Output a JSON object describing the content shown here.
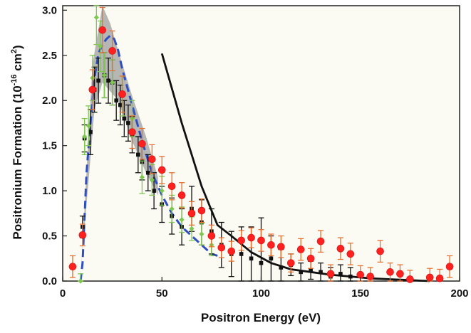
{
  "chart_data": {
    "type": "scatter",
    "title": "",
    "xlabel": "Positron Energy (eV)",
    "ylabel_main": "Positronium Formation (10",
    "ylabel_exp1": "-16",
    "ylabel_mid": " cm",
    "ylabel_exp2": "2",
    "ylabel_end": ")",
    "xlim": [
      0,
      200
    ],
    "ylim": [
      0,
      3.05
    ],
    "xticks": [
      0,
      50,
      100,
      150,
      200
    ],
    "xtick_labels": [
      "0",
      "50",
      "100",
      "150",
      "200"
    ],
    "yticks": [
      0,
      0.5,
      1.0,
      1.5,
      2.0,
      2.5,
      3.0
    ],
    "ytick_labels": [
      "0.0",
      "0.5",
      "1.0",
      "1.5",
      "2.0",
      "2.5",
      "3.0"
    ],
    "colors": {
      "red": "#ff2020",
      "red_err": "#e87030",
      "green": "#7ec850",
      "black": "#111111",
      "blue": "#2f4fbf",
      "band": "#a9a9a9",
      "plot_bg": "#fbfbf4"
    },
    "band": {
      "upper": [
        [
          9,
          0
        ],
        [
          12,
          1.2
        ],
        [
          15,
          2.4
        ],
        [
          20,
          3.05
        ],
        [
          24,
          2.85
        ],
        [
          28,
          2.55
        ],
        [
          35,
          2.05
        ],
        [
          42,
          1.6
        ],
        [
          48,
          1.15
        ]
      ],
      "lower": [
        [
          48,
          0.95
        ],
        [
          42,
          1.2
        ],
        [
          35,
          1.55
        ],
        [
          28,
          2.0
        ],
        [
          24,
          2.1
        ],
        [
          20,
          2.2
        ],
        [
          16,
          1.9
        ],
        [
          13,
          1.1
        ],
        [
          10,
          0.35
        ],
        [
          9,
          0
        ]
      ]
    },
    "series": [
      {
        "style": "markers",
        "marker": "circle",
        "color": "#ff2020",
        "err_color": "#e87030",
        "points": [
          [
            5,
            0.16,
            0.12
          ],
          [
            10,
            0.51,
            0.12
          ],
          [
            15,
            2.12,
            0.22
          ],
          [
            20,
            2.78,
            0.25
          ],
          [
            25,
            2.55,
            0.22
          ],
          [
            30,
            2.07,
            0.2
          ],
          [
            35,
            1.65,
            0.18
          ],
          [
            40,
            1.52,
            0.17
          ],
          [
            45,
            1.35,
            0.16
          ],
          [
            50,
            1.23,
            0.15
          ],
          [
            55,
            1.05,
            0.15
          ],
          [
            60,
            0.95,
            0.14
          ],
          [
            65,
            0.75,
            0.13
          ],
          [
            70,
            0.78,
            0.13
          ],
          [
            75,
            0.5,
            0.12
          ],
          [
            80,
            0.37,
            0.11
          ],
          [
            85,
            0.33,
            0.11
          ],
          [
            90,
            0.45,
            0.11
          ],
          [
            95,
            0.48,
            0.11
          ],
          [
            100,
            0.45,
            0.12
          ],
          [
            105,
            0.4,
            0.12
          ],
          [
            110,
            0.38,
            0.12
          ],
          [
            115,
            0.2,
            0.1
          ],
          [
            120,
            0.35,
            0.12
          ],
          [
            125,
            0.25,
            0.11
          ],
          [
            130,
            0.44,
            0.12
          ],
          [
            135,
            0.08,
            0.1
          ],
          [
            140,
            0.36,
            0.12
          ],
          [
            145,
            0.3,
            0.12
          ],
          [
            150,
            0.07,
            0.1
          ],
          [
            155,
            0.05,
            0.1
          ],
          [
            160,
            0.33,
            0.12
          ],
          [
            165,
            0.1,
            0.1
          ],
          [
            170,
            0.08,
            0.1
          ],
          [
            175,
            0.02,
            0.1
          ],
          [
            185,
            0.04,
            0.1
          ],
          [
            190,
            0.03,
            0.1
          ],
          [
            195,
            0.16,
            0.12
          ]
        ]
      },
      {
        "style": "markers",
        "marker": "diamond",
        "color": "#7ec850",
        "err_color": "#7ec850",
        "points": [
          [
            9,
            0.0,
            0.08
          ],
          [
            11,
            1.6,
            0.2
          ],
          [
            13,
            1.72,
            0.22
          ],
          [
            15,
            2.25,
            0.25
          ],
          [
            17,
            2.92,
            0.3
          ],
          [
            19,
            2.6,
            0.28
          ],
          [
            21,
            2.28,
            0.25
          ],
          [
            25,
            2.2,
            0.25
          ],
          [
            30,
            2.05,
            0.22
          ],
          [
            35,
            1.8,
            0.2
          ],
          [
            40,
            1.15,
            0.18
          ],
          [
            45,
            1.12,
            0.17
          ],
          [
            50,
            1.0,
            0.16
          ],
          [
            55,
            0.8,
            0.15
          ],
          [
            60,
            0.68,
            0.14
          ],
          [
            65,
            0.58,
            0.13
          ],
          [
            70,
            0.52,
            0.12
          ],
          [
            75,
            0.4,
            0.12
          ]
        ]
      },
      {
        "style": "markers",
        "marker": "square",
        "color": "#111111",
        "err_color": "#111111",
        "points": [
          [
            10,
            0.6,
            0.12
          ],
          [
            11,
            1.58,
            0.15
          ],
          [
            14,
            1.65,
            0.25
          ],
          [
            16,
            2.12,
            0.25
          ],
          [
            18,
            2.22,
            0.25
          ],
          [
            21,
            2.28,
            0.25
          ],
          [
            23,
            2.22,
            0.25
          ],
          [
            25,
            2.2,
            0.25
          ],
          [
            27,
            2.0,
            0.22
          ],
          [
            29,
            1.95,
            0.22
          ],
          [
            31,
            1.8,
            0.2
          ],
          [
            33,
            1.75,
            0.2
          ],
          [
            35,
            1.62,
            0.2
          ],
          [
            38,
            1.4,
            0.2
          ],
          [
            40,
            1.32,
            0.2
          ],
          [
            43,
            1.2,
            0.2
          ],
          [
            46,
            1.0,
            0.2
          ],
          [
            50,
            0.85,
            0.2
          ],
          [
            55,
            0.72,
            0.2
          ],
          [
            60,
            0.6,
            0.2
          ],
          [
            65,
            0.8,
            0.25
          ],
          [
            70,
            0.65,
            0.25
          ],
          [
            75,
            0.55,
            0.25
          ],
          [
            80,
            0.4,
            0.25
          ],
          [
            85,
            0.3,
            0.25
          ],
          [
            90,
            0.3,
            0.3
          ],
          [
            95,
            0.25,
            0.35
          ],
          [
            100,
            0.2,
            0.5
          ],
          [
            105,
            0.25,
            0.25
          ],
          [
            110,
            0.15,
            0.2
          ],
          [
            115,
            0.18,
            0.12
          ],
          [
            120,
            0.1,
            0.1
          ],
          [
            125,
            0.12,
            0.1
          ],
          [
            130,
            0.1,
            0.1
          ],
          [
            135,
            0.05,
            0.1
          ],
          [
            140,
            0.08,
            0.1
          ],
          [
            145,
            0.05,
            0.1
          ]
        ]
      },
      {
        "style": "dashed-line",
        "color": "#2f4fbf",
        "points": [
          [
            9,
            0.0
          ],
          [
            10,
            0.2
          ],
          [
            12,
            1.2
          ],
          [
            14,
            1.75
          ],
          [
            16,
            2.25
          ],
          [
            18,
            2.52
          ],
          [
            20,
            2.62
          ],
          [
            22,
            2.68
          ],
          [
            24,
            2.72
          ],
          [
            26,
            2.68
          ],
          [
            28,
            2.55
          ],
          [
            30,
            2.35
          ],
          [
            35,
            1.95
          ],
          [
            40,
            1.55
          ],
          [
            45,
            1.2
          ],
          [
            50,
            0.95
          ],
          [
            55,
            0.75
          ],
          [
            60,
            0.6
          ],
          [
            65,
            0.5
          ],
          [
            70,
            0.4
          ],
          [
            75,
            0.3
          ],
          [
            78,
            0.28
          ]
        ]
      },
      {
        "style": "solid-line",
        "color": "#111111",
        "points": [
          [
            50,
            2.52
          ],
          [
            60,
            1.75
          ],
          [
            70,
            1.05
          ],
          [
            78,
            0.62
          ],
          [
            85,
            0.5
          ],
          [
            95,
            0.32
          ],
          [
            105,
            0.2
          ],
          [
            115,
            0.13
          ],
          [
            125,
            0.1
          ],
          [
            135,
            0.07
          ],
          [
            145,
            0.05
          ],
          [
            155,
            0.03
          ],
          [
            165,
            0.02
          ],
          [
            175,
            0.01
          ],
          [
            185,
            0.0
          ]
        ]
      }
    ]
  }
}
